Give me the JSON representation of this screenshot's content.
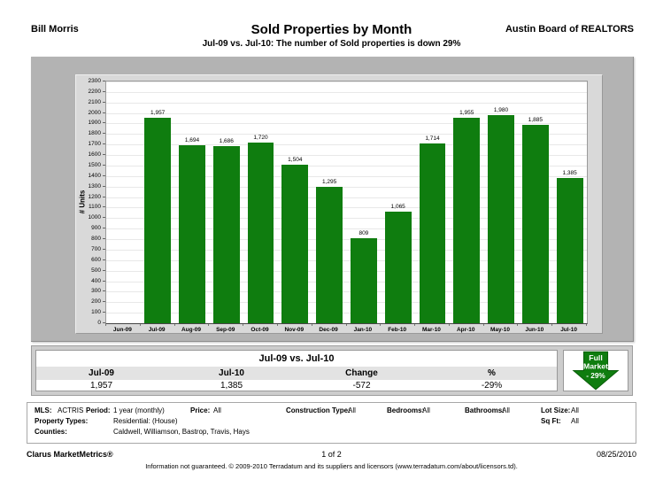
{
  "header": {
    "agent_name": "Bill Morris",
    "title": "Sold Properties by Month",
    "subtitle": "Jul-09 vs. Jul-10: The number of Sold properties is down 29%",
    "organization": "Austin Board of REALTORS"
  },
  "chart_data": {
    "type": "bar",
    "title": "Sold Properties by Month",
    "ylabel": "# Units",
    "ylim": [
      0,
      2300
    ],
    "ytick_step": 100,
    "grid": "horizontal",
    "categories": [
      "Jun-09",
      "Jul-09",
      "Aug-09",
      "Sep-09",
      "Oct-09",
      "Nov-09",
      "Dec-09",
      "Jan-10",
      "Feb-10",
      "Mar-10",
      "Apr-10",
      "May-10",
      "Jun-10",
      "Jul-10"
    ],
    "values": [
      null,
      1957,
      1694,
      1686,
      1720,
      1504,
      1295,
      809,
      1065,
      1714,
      1955,
      1980,
      1885,
      1385
    ],
    "bar_color": "#0f7d0f"
  },
  "summary_table": {
    "title": "Jul-09 vs. Jul-10",
    "headers": [
      "Jul-09",
      "Jul-10",
      "Change",
      "%"
    ],
    "values": [
      "1,957",
      "1,385",
      "-572",
      "-29%"
    ]
  },
  "market_badge": {
    "line1": "Full",
    "line2": "Market",
    "line3": "- 29%",
    "arrow_color": "#0f7d0f",
    "pct_color": "#ffe000"
  },
  "criteria": {
    "mls_label": "MLS:",
    "mls": "ACTRIS",
    "period_label": "Period:",
    "period": "1 year (monthly)",
    "price_label": "Price:",
    "price": "All",
    "construction_label": "Construction Type:",
    "construction": "All",
    "bedrooms_label": "Bedrooms:",
    "bedrooms": "All",
    "bathrooms_label": "Bathrooms:",
    "bathrooms": "All",
    "lot_size_label": "Lot Size:",
    "lot_size": "All",
    "property_types_label": "Property Types:",
    "property_types": "Residential: (House)",
    "sq_ft_label": "Sq Ft:",
    "sq_ft": "All",
    "counties_label": "Counties:",
    "counties": "Caldwell, Williamson, Bastrop, Travis, Hays"
  },
  "footer": {
    "brand": "Clarus MarketMetrics®",
    "page": "1 of 2",
    "date": "08/25/2010",
    "disclaimer": "Information not guaranteed.  © 2009-2010 Terradatum and its suppliers and licensors (www.terradatum.com/about/licensors.td)."
  }
}
